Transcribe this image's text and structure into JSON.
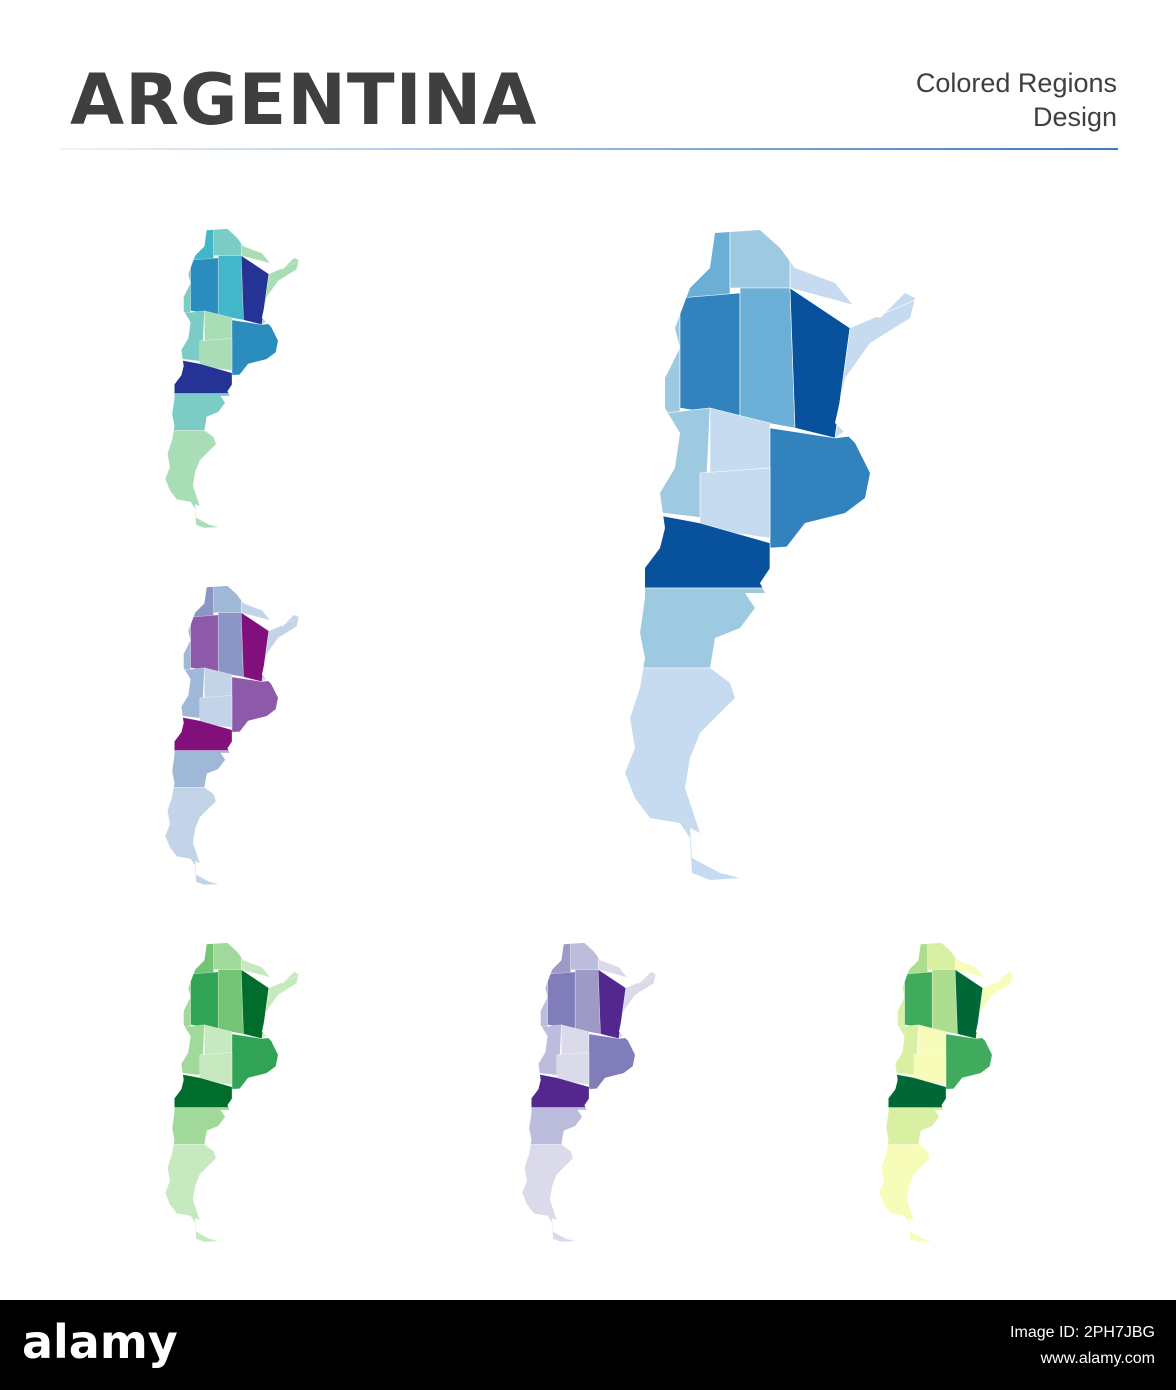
{
  "header": {
    "title": "ARGENTINA",
    "subtitle_lines": [
      "Colored Regions",
      "Design"
    ]
  },
  "footer": {
    "brand": "alamy",
    "image_id": "Image ID: 2PH7JBG",
    "website": "www.alamy.com"
  }
}
